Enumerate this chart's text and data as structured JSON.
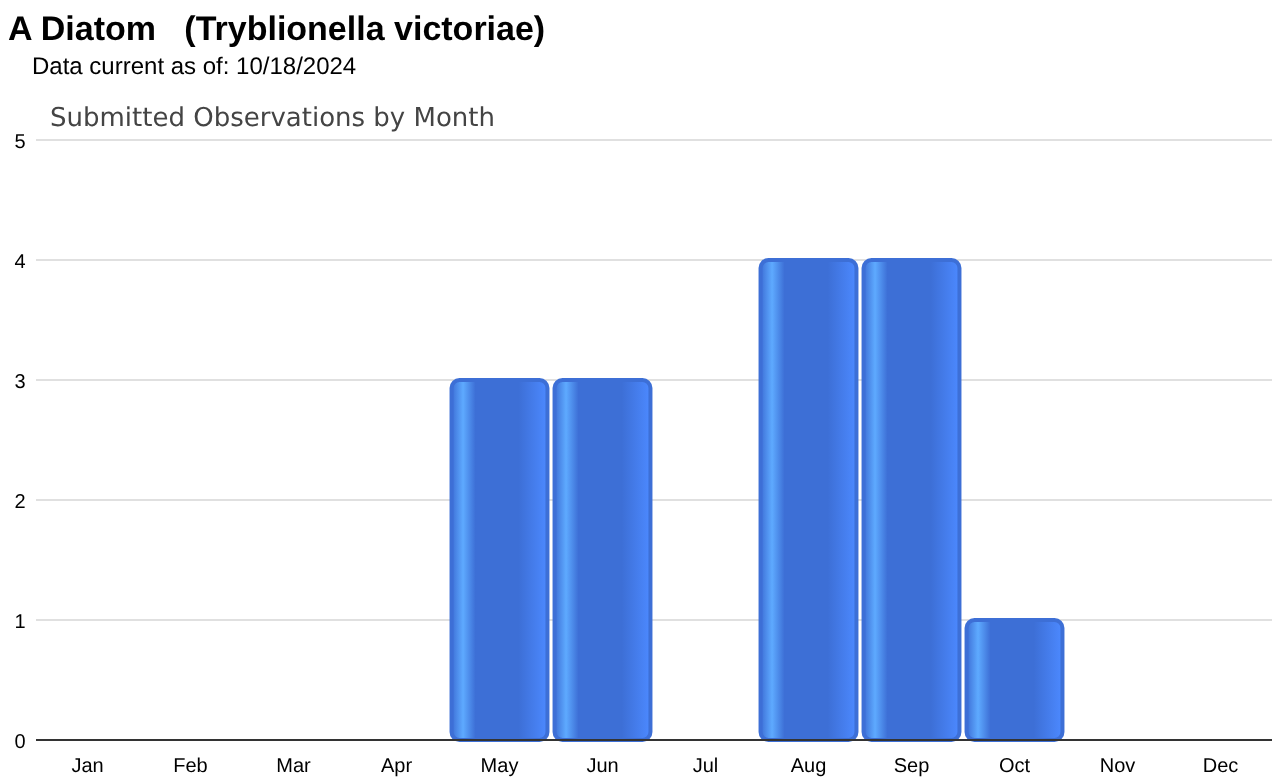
{
  "chart_data": {
    "type": "bar",
    "title": "A Diatom   (Tryblionella victoriae)",
    "subtitle": "Data current as of: 10/18/2024",
    "annotations": [
      "Submitted Observations by Month"
    ],
    "categories": [
      "Jan",
      "Feb",
      "Mar",
      "Apr",
      "May",
      "Jun",
      "Jul",
      "Aug",
      "Sep",
      "Oct",
      "Nov",
      "Dec"
    ],
    "values": [
      0,
      0,
      0,
      0,
      3,
      3,
      0,
      4,
      4,
      1,
      0,
      0
    ],
    "color": "#3d6fd6",
    "ylim": [
      0,
      5
    ],
    "yticks": [
      0,
      1,
      2,
      3,
      4,
      5
    ],
    "grid": "y"
  }
}
